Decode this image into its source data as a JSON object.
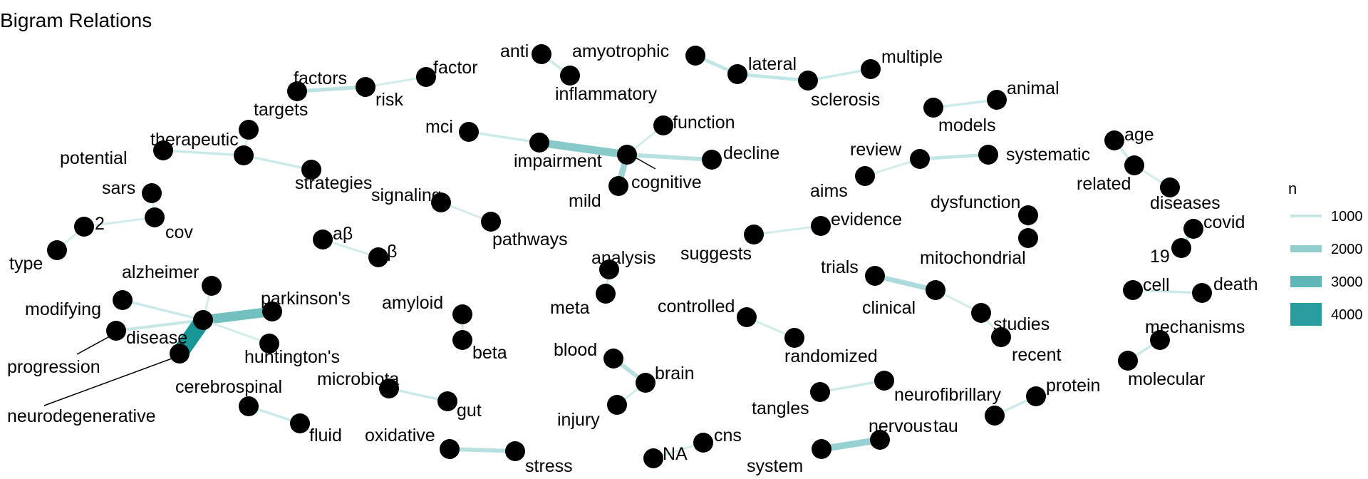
{
  "chart_data": {
    "type": "network",
    "title": "Bigram Relations",
    "nodes": [
      {
        "id": "anti",
        "label": "anti"
      },
      {
        "id": "inflammatory",
        "label": "inflammatory"
      },
      {
        "id": "amyotrophic",
        "label": "amyotrophic"
      },
      {
        "id": "lateral",
        "label": "lateral"
      },
      {
        "id": "sclerosis",
        "label": "sclerosis"
      },
      {
        "id": "multiple",
        "label": "multiple"
      },
      {
        "id": "factors",
        "label": "factors"
      },
      {
        "id": "risk",
        "label": "risk"
      },
      {
        "id": "factor",
        "label": "factor"
      },
      {
        "id": "targets",
        "label": "targets"
      },
      {
        "id": "therapeutic",
        "label": "therapeutic"
      },
      {
        "id": "potential",
        "label": "potential"
      },
      {
        "id": "strategies",
        "label": "strategies"
      },
      {
        "id": "mci",
        "label": "mci"
      },
      {
        "id": "impairment",
        "label": "impairment"
      },
      {
        "id": "cognitive",
        "label": "cognitive"
      },
      {
        "id": "function",
        "label": "function"
      },
      {
        "id": "decline",
        "label": "decline"
      },
      {
        "id": "mild",
        "label": "mild"
      },
      {
        "id": "models",
        "label": "models"
      },
      {
        "id": "animal",
        "label": "animal"
      },
      {
        "id": "review",
        "label": "review"
      },
      {
        "id": "systematic",
        "label": "systematic"
      },
      {
        "id": "aims",
        "label": "aims"
      },
      {
        "id": "age",
        "label": "age"
      },
      {
        "id": "related",
        "label": "related"
      },
      {
        "id": "diseases",
        "label": "diseases"
      },
      {
        "id": "sars",
        "label": "sars"
      },
      {
        "id": "cov",
        "label": "cov"
      },
      {
        "id": "two",
        "label": "2"
      },
      {
        "id": "type",
        "label": "type"
      },
      {
        "id": "signaling",
        "label": "signaling"
      },
      {
        "id": "pathways",
        "label": "pathways"
      },
      {
        "id": "evidence",
        "label": "evidence"
      },
      {
        "id": "suggests",
        "label": "suggests"
      },
      {
        "id": "dysfunction",
        "label": "dysfunction"
      },
      {
        "id": "mitochondrial",
        "label": "mitochondrial"
      },
      {
        "id": "covid",
        "label": "covid"
      },
      {
        "id": "nineteen",
        "label": "19"
      },
      {
        "id": "abeta",
        "label": "aβ"
      },
      {
        "id": "beta_sym",
        "label": "β"
      },
      {
        "id": "analysis",
        "label": "analysis"
      },
      {
        "id": "meta",
        "label": "meta"
      },
      {
        "id": "trials",
        "label": "trials"
      },
      {
        "id": "clinical",
        "label": "clinical"
      },
      {
        "id": "studies",
        "label": "studies"
      },
      {
        "id": "recent",
        "label": "recent"
      },
      {
        "id": "cell",
        "label": "cell"
      },
      {
        "id": "death",
        "label": "death"
      },
      {
        "id": "alzheimer",
        "label": "alzheimer"
      },
      {
        "id": "modifying",
        "label": "modifying"
      },
      {
        "id": "disease",
        "label": "disease"
      },
      {
        "id": "parkinsons",
        "label": "parkinson's"
      },
      {
        "id": "huntingtons",
        "label": "huntington's"
      },
      {
        "id": "progression",
        "label": "progression"
      },
      {
        "id": "neurodegenerative",
        "label": "neurodegenerative"
      },
      {
        "id": "amyloid",
        "label": "amyloid"
      },
      {
        "id": "beta",
        "label": "beta"
      },
      {
        "id": "controlled",
        "label": "controlled"
      },
      {
        "id": "randomized",
        "label": "randomized"
      },
      {
        "id": "mechanisms",
        "label": "mechanisms"
      },
      {
        "id": "molecular",
        "label": "molecular"
      },
      {
        "id": "blood",
        "label": "blood"
      },
      {
        "id": "brain",
        "label": "brain"
      },
      {
        "id": "injury",
        "label": "injury"
      },
      {
        "id": "cerebrospinal",
        "label": "cerebrospinal"
      },
      {
        "id": "fluid",
        "label": "fluid"
      },
      {
        "id": "microbiota",
        "label": "microbiota"
      },
      {
        "id": "gut",
        "label": "gut"
      },
      {
        "id": "tangles",
        "label": "tangles"
      },
      {
        "id": "neurofibrillary",
        "label": "neurofibrillary"
      },
      {
        "id": "protein",
        "label": "protein"
      },
      {
        "id": "tau",
        "label": "tau"
      },
      {
        "id": "oxidative",
        "label": "oxidative"
      },
      {
        "id": "stress",
        "label": "stress"
      },
      {
        "id": "cns",
        "label": "cns"
      },
      {
        "id": "na",
        "label": "NA"
      },
      {
        "id": "nervous",
        "label": "nervous"
      },
      {
        "id": "system",
        "label": "system"
      }
    ],
    "edges": [
      {
        "from": "anti",
        "to": "inflammatory",
        "n": 900
      },
      {
        "from": "amyotrophic",
        "to": "lateral",
        "n": 1100
      },
      {
        "from": "lateral",
        "to": "sclerosis",
        "n": 1100
      },
      {
        "from": "multiple",
        "to": "sclerosis",
        "n": 900
      },
      {
        "from": "risk",
        "to": "factors",
        "n": 1200
      },
      {
        "from": "risk",
        "to": "factor",
        "n": 800
      },
      {
        "from": "therapeutic",
        "to": "targets",
        "n": 800
      },
      {
        "from": "potential",
        "to": "therapeutic",
        "n": 900
      },
      {
        "from": "therapeutic",
        "to": "strategies",
        "n": 900
      },
      {
        "from": "mci",
        "to": "impairment",
        "n": 900
      },
      {
        "from": "impairment",
        "to": "cognitive",
        "n": 2200
      },
      {
        "from": "cognitive",
        "to": "decline",
        "n": 1300
      },
      {
        "from": "cognitive",
        "to": "function",
        "n": 800
      },
      {
        "from": "mild",
        "to": "cognitive",
        "n": 1800
      },
      {
        "from": "animal",
        "to": "models",
        "n": 900
      },
      {
        "from": "systematic",
        "to": "review",
        "n": 1100
      },
      {
        "from": "aims",
        "to": "review",
        "n": 800
      },
      {
        "from": "age",
        "to": "related",
        "n": 900
      },
      {
        "from": "related",
        "to": "diseases",
        "n": 800
      },
      {
        "from": "sars",
        "to": "cov",
        "n": 800
      },
      {
        "from": "cov",
        "to": "two",
        "n": 800
      },
      {
        "from": "type",
        "to": "two",
        "n": 800
      },
      {
        "from": "signaling",
        "to": "pathways",
        "n": 800
      },
      {
        "from": "evidence",
        "to": "suggests",
        "n": 800
      },
      {
        "from": "mitochondrial",
        "to": "dysfunction",
        "n": 900
      },
      {
        "from": "covid",
        "to": "nineteen",
        "n": 1000
      },
      {
        "from": "abeta",
        "to": "beta_sym",
        "n": 800
      },
      {
        "from": "meta",
        "to": "analysis",
        "n": 900
      },
      {
        "from": "clinical",
        "to": "trials",
        "n": 1500
      },
      {
        "from": "clinical",
        "to": "studies",
        "n": 800
      },
      {
        "from": "recent",
        "to": "studies",
        "n": 800
      },
      {
        "from": "cell",
        "to": "death",
        "n": 900
      },
      {
        "from": "alzheimer",
        "to": "disease",
        "n": 800
      },
      {
        "from": "modifying",
        "to": "disease",
        "n": 900
      },
      {
        "from": "parkinsons",
        "to": "disease",
        "n": 2600
      },
      {
        "from": "huntingtons",
        "to": "disease",
        "n": 800
      },
      {
        "from": "disease",
        "to": "progression",
        "n": 1000
      },
      {
        "from": "neurodegenerative",
        "to": "disease",
        "n": 4300
      },
      {
        "from": "amyloid",
        "to": "beta",
        "n": 900
      },
      {
        "from": "randomized",
        "to": "controlled",
        "n": 800
      },
      {
        "from": "molecular",
        "to": "mechanisms",
        "n": 900
      },
      {
        "from": "blood",
        "to": "brain",
        "n": 1300
      },
      {
        "from": "brain",
        "to": "injury",
        "n": 800
      },
      {
        "from": "cerebrospinal",
        "to": "fluid",
        "n": 900
      },
      {
        "from": "gut",
        "to": "microbiota",
        "n": 900
      },
      {
        "from": "neurofibrillary",
        "to": "tangles",
        "n": 900
      },
      {
        "from": "tau",
        "to": "protein",
        "n": 900
      },
      {
        "from": "oxidative",
        "to": "stress",
        "n": 1300
      },
      {
        "from": "cns",
        "to": "na",
        "n": 800
      },
      {
        "from": "nervous",
        "to": "system",
        "n": 1900
      }
    ],
    "legend": {
      "title": "n",
      "placement": "right",
      "entries": [
        {
          "label": "1000",
          "value": 1000
        },
        {
          "label": "2000",
          "value": 2000
        },
        {
          "label": "3000",
          "value": 3000
        },
        {
          "label": "4000",
          "value": 4000
        }
      ]
    },
    "colors": {
      "edge_low": "#d2ecec",
      "edge_high": "#199696",
      "node": "#000000",
      "leader": "#000000"
    },
    "n_range": [
      800,
      4300
    ]
  }
}
